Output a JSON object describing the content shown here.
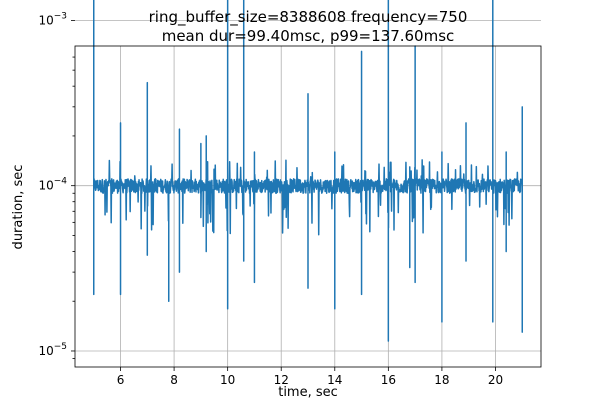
{
  "chart_data": {
    "type": "line",
    "title": "ring_buffer_size=8388608 frequency=750",
    "subtitle": "mean dur=99.40msc, p99=137.60msc",
    "xlabel": "time, sec",
    "ylabel": "duration, sec",
    "xlim": [
      4.3,
      21.7
    ],
    "ylim": [
      8e-06,
      0.0007
    ],
    "yscale": "log",
    "grid": true,
    "x_ticks": [
      6,
      8,
      10,
      12,
      14,
      16,
      18,
      20
    ],
    "x_tick_labels": [
      "6",
      "8",
      "10",
      "12",
      "14",
      "16",
      "18",
      "20"
    ],
    "y_ticks": [
      1e-05,
      0.0001,
      0.001
    ],
    "y_tick_labels": [
      {
        "base": "10",
        "exp": "−5"
      },
      {
        "base": "10",
        "exp": "−4"
      },
      {
        "base": "10",
        "exp": "−3"
      }
    ],
    "series": [
      {
        "color": "#1f77b4",
        "baseline": 0.0001,
        "x_start": 5.0,
        "x_end": 21.0,
        "spikes": [
          {
            "x": 5.0,
            "y": 0.0047
          },
          {
            "x": 5.0,
            "y": 2.2e-05
          },
          {
            "x": 6.0,
            "y": 0.00024
          },
          {
            "x": 6.0,
            "y": 2.2e-05
          },
          {
            "x": 7.0,
            "y": 0.00042
          },
          {
            "x": 7.0,
            "y": 3.8e-05
          },
          {
            "x": 7.8,
            "y": 2e-05
          },
          {
            "x": 8.2,
            "y": 0.00022
          },
          {
            "x": 8.2,
            "y": 3e-05
          },
          {
            "x": 9.0,
            "y": 0.00018
          },
          {
            "x": 9.2,
            "y": 0.0002
          },
          {
            "x": 9.2,
            "y": 4e-05
          },
          {
            "x": 10.0,
            "y": 0.0041
          },
          {
            "x": 10.0,
            "y": 1.8e-05
          },
          {
            "x": 10.6,
            "y": 0.0035
          },
          {
            "x": 10.6,
            "y": 3.5e-05
          },
          {
            "x": 11.0,
            "y": 0.00016
          },
          {
            "x": 11.0,
            "y": 2.6e-05
          },
          {
            "x": 13.0,
            "y": 0.00036
          },
          {
            "x": 13.0,
            "y": 2.4e-05
          },
          {
            "x": 14.0,
            "y": 0.00016
          },
          {
            "x": 14.0,
            "y": 1.8e-05
          },
          {
            "x": 15.0,
            "y": 0.00065
          },
          {
            "x": 15.0,
            "y": 2.2e-05
          },
          {
            "x": 16.0,
            "y": 0.0035
          },
          {
            "x": 16.0,
            "y": 1.15e-05
          },
          {
            "x": 16.8,
            "y": 0.00013
          },
          {
            "x": 16.8,
            "y": 3.2e-05
          },
          {
            "x": 17.0,
            "y": 0.0007
          },
          {
            "x": 17.0,
            "y": 2.6e-05
          },
          {
            "x": 18.0,
            "y": 0.00016
          },
          {
            "x": 18.0,
            "y": 1.5e-05
          },
          {
            "x": 18.9,
            "y": 0.00024
          },
          {
            "x": 18.9,
            "y": 3.5e-05
          },
          {
            "x": 19.9,
            "y": 0.003
          },
          {
            "x": 19.9,
            "y": 1.5e-05
          },
          {
            "x": 20.4,
            "y": 0.00016
          },
          {
            "x": 20.4,
            "y": 4e-05
          },
          {
            "x": 21.0,
            "y": 0.0003
          },
          {
            "x": 21.0,
            "y": 1.3e-05
          }
        ],
        "noise_band": [
          5e-05,
          0.000145
        ]
      }
    ]
  }
}
